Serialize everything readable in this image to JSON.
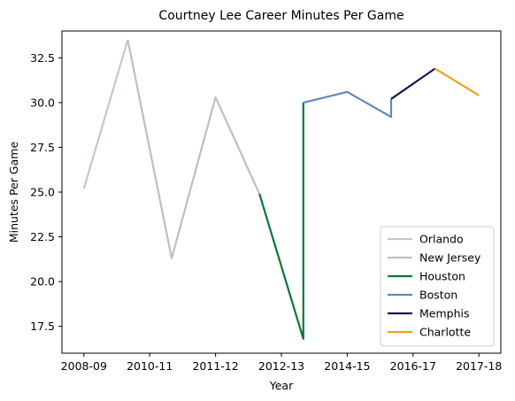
{
  "chart_data": {
    "type": "line",
    "title": "Courtney Lee Career Minutes Per Game",
    "xlabel": "Year",
    "ylabel": "Minutes Per Game",
    "x_ticks": [
      "2008-09",
      "2010-11",
      "2011-12",
      "2012-13",
      "2014-15",
      "2016-17",
      "2017-18"
    ],
    "x_tick_positions": [
      0,
      1.5,
      3,
      4.5,
      6,
      7.5,
      9
    ],
    "xlim": [
      -0.5,
      9.5
    ],
    "y_ticks": [
      17.5,
      20.0,
      22.5,
      25.0,
      27.5,
      30.0,
      32.5
    ],
    "y_tick_labels": [
      "17.5",
      "20.0",
      "22.5",
      "25.0",
      "27.5",
      "30.0",
      "32.5"
    ],
    "ylim": [
      16.0,
      34.0
    ],
    "grid": false,
    "legend_position": "lower right",
    "series": [
      {
        "name": "Orlando",
        "color": "#c0c8d0",
        "x": [
          0,
          1
        ],
        "y": [
          25.2,
          33.5
        ]
      },
      {
        "name": "New Jersey",
        "color": "#bfbfbf",
        "x": [
          1,
          2,
          3,
          4
        ],
        "y": [
          33.5,
          21.3,
          30.3,
          24.9
        ]
      },
      {
        "name": "Houston",
        "color": "#047834",
        "x": [
          4,
          5,
          5
        ],
        "y": [
          24.9,
          16.8,
          30.0
        ]
      },
      {
        "name": "Boston",
        "color": "#6389b3",
        "x": [
          5,
          6,
          7,
          7
        ],
        "y": [
          30.0,
          30.6,
          29.2,
          30.2
        ]
      },
      {
        "name": "Memphis",
        "color": "#1d1451",
        "x": [
          7,
          8
        ],
        "y": [
          30.2,
          31.9
        ]
      },
      {
        "name": "Charlotte",
        "color": "#f79d1e",
        "x": [
          8,
          9
        ],
        "y": [
          31.9,
          30.4
        ]
      }
    ]
  }
}
